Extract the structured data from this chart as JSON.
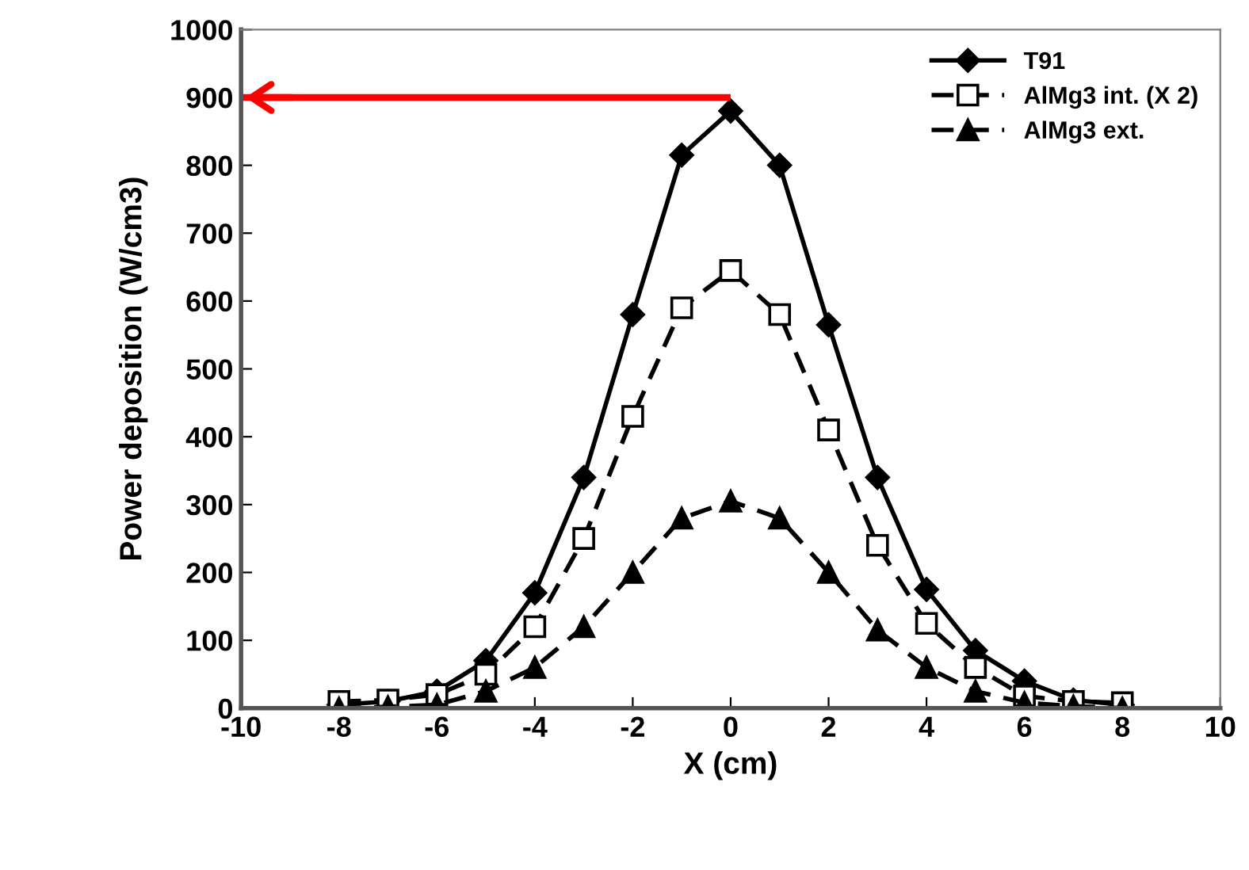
{
  "chart_data": {
    "type": "line",
    "xlabel": "X (cm)",
    "ylabel": "Power deposition (W/cm3)",
    "x": [
      -8,
      -7,
      -6,
      -5,
      -4,
      -3,
      -2,
      -1,
      0,
      1,
      2,
      3,
      4,
      5,
      6,
      7,
      8
    ],
    "series": [
      {
        "name": "T91",
        "color": "#000000",
        "marker": "diamond",
        "line_style": "solid",
        "values": [
          5,
          10,
          25,
          70,
          170,
          340,
          580,
          815,
          880,
          800,
          565,
          340,
          175,
          85,
          40,
          12,
          5
        ]
      },
      {
        "name": "AlMg3 int. (X 2)",
        "color": "#000000",
        "marker": "square",
        "line_style": "dashed",
        "values": [
          10,
          12,
          20,
          50,
          120,
          250,
          430,
          590,
          645,
          580,
          410,
          240,
          125,
          60,
          18,
          10,
          8
        ]
      },
      {
        "name": "AlMg3 ext.",
        "color": "#000000",
        "marker": "triangle",
        "line_style": "dashed",
        "values": [
          0,
          2,
          5,
          25,
          60,
          120,
          200,
          280,
          305,
          280,
          200,
          115,
          60,
          25,
          8,
          3,
          0
        ]
      }
    ],
    "ref_lines": [
      {
        "axis": "y",
        "value": 900,
        "color": "#ff0000"
      }
    ],
    "xlim": [
      -10,
      10
    ],
    "xticks": [
      -10,
      -8,
      -6,
      -4,
      -2,
      0,
      2,
      4,
      6,
      8,
      10
    ],
    "ylim": [
      0,
      1000
    ],
    "yticks": [
      0,
      100,
      200,
      300,
      400,
      500,
      600,
      700,
      800,
      900,
      1000
    ],
    "grid": false,
    "legend": "top right"
  }
}
